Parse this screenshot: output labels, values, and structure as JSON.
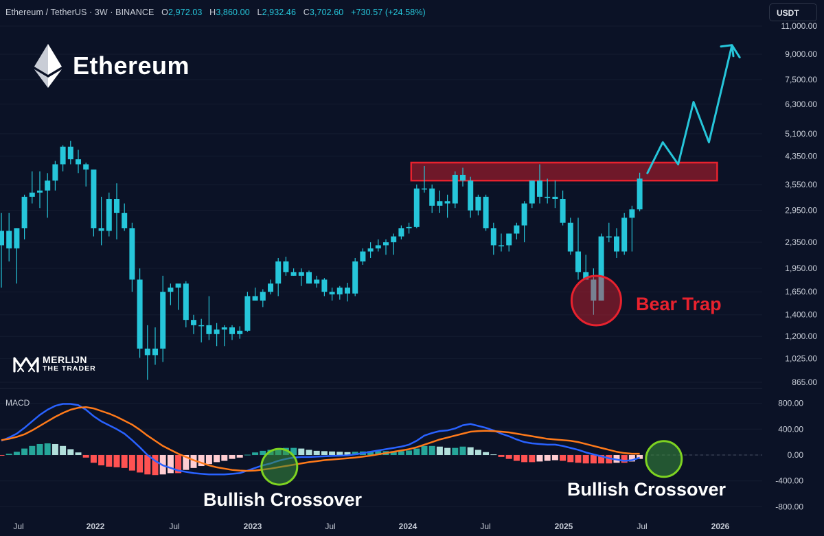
{
  "header": {
    "symbol": "Ethereum / TetherUS · 3W · BINANCE",
    "open_label": "O",
    "open": "2,972.03",
    "high_label": "H",
    "high": "3,860.00",
    "low_label": "L",
    "low": "2,932.46",
    "close_label": "C",
    "close": "3,702.60",
    "change": "+730.57 (+24.58%)"
  },
  "currency_button": "USDT",
  "brand": {
    "title": "Ethereum",
    "icon": "ethereum-logo-icon"
  },
  "watermark": {
    "line1": "MERLIJN",
    "line2": "THE TRADER",
    "icon": "merlijn-logo-icon"
  },
  "annotations": {
    "bear_trap": "Bear Trap",
    "bullish_crossover_1": "Bullish Crossover",
    "bullish_crossover_2": "Bullish Crossover"
  },
  "colors": {
    "background": "#0b1226",
    "candle": "#26c6da",
    "resistance_zone": "#e8222e",
    "bear_trap": "#e8222e",
    "projection": "#26c6da",
    "macd_line": "#2962ff",
    "signal_line": "#ff7a1a",
    "hist_pos_strong": "#26a69a",
    "hist_pos_weak": "#b2dfdb",
    "hist_neg_strong": "#ff5252",
    "hist_neg_weak": "#ffcdd2",
    "crossover_circle": "#7ed321",
    "axis_text": "#c9ced8"
  },
  "chart_data": [
    {
      "type": "candlestick",
      "title": "Ethereum / TetherUS · 3W · BINANCE",
      "y_scale": "log",
      "y_ticks": [
        "11,000.00",
        "9,000.00",
        "7,500.00",
        "6,300.00",
        "5,100.00",
        "4,350.00",
        "3,550.00",
        "2,950.00",
        "2,350.00",
        "1,950.00",
        "1,650.00",
        "1,400.00",
        "1,200.00",
        "1,025.00",
        "865.00"
      ],
      "x_ticks": [
        "Jul",
        "2022",
        "Jul",
        "2023",
        "Jul",
        "2024",
        "Jul",
        "2025",
        "Jul",
        "2026"
      ],
      "candles": [
        {
          "o": 2300,
          "h": 2900,
          "l": 1700,
          "c": 2550
        },
        {
          "o": 2550,
          "h": 2900,
          "l": 2050,
          "c": 2250
        },
        {
          "o": 2250,
          "h": 2600,
          "l": 1750,
          "c": 2600
        },
        {
          "o": 2600,
          "h": 3300,
          "l": 2400,
          "c": 3250
        },
        {
          "o": 3250,
          "h": 3900,
          "l": 3100,
          "c": 3350
        },
        {
          "o": 3350,
          "h": 3900,
          "l": 3000,
          "c": 3400
        },
        {
          "o": 3400,
          "h": 3850,
          "l": 2800,
          "c": 3650
        },
        {
          "o": 3650,
          "h": 4200,
          "l": 3400,
          "c": 4100
        },
        {
          "o": 4100,
          "h": 4700,
          "l": 3900,
          "c": 4650
        },
        {
          "o": 4650,
          "h": 4850,
          "l": 4100,
          "c": 4250
        },
        {
          "o": 4250,
          "h": 4550,
          "l": 3850,
          "c": 4100
        },
        {
          "o": 4100,
          "h": 4150,
          "l": 3500,
          "c": 3950
        },
        {
          "o": 3950,
          "h": 3950,
          "l": 2450,
          "c": 2600
        },
        {
          "o": 2600,
          "h": 3250,
          "l": 2300,
          "c": 2550
        },
        {
          "o": 2550,
          "h": 3350,
          "l": 2450,
          "c": 3200
        },
        {
          "o": 3200,
          "h": 3580,
          "l": 2400,
          "c": 2900
        },
        {
          "o": 2900,
          "h": 3100,
          "l": 2550,
          "c": 2600
        },
        {
          "o": 2600,
          "h": 2700,
          "l": 1650,
          "c": 1800
        },
        {
          "o": 1800,
          "h": 1950,
          "l": 1030,
          "c": 1100
        },
        {
          "o": 1100,
          "h": 1300,
          "l": 880,
          "c": 1050
        },
        {
          "o": 1050,
          "h": 1280,
          "l": 980,
          "c": 1100
        },
        {
          "o": 1100,
          "h": 1850,
          "l": 1000,
          "c": 1650
        },
        {
          "o": 1650,
          "h": 1750,
          "l": 1500,
          "c": 1700
        },
        {
          "o": 1700,
          "h": 1720,
          "l": 1450,
          "c": 1750
        },
        {
          "o": 1750,
          "h": 1780,
          "l": 1280,
          "c": 1350
        },
        {
          "o": 1350,
          "h": 1400,
          "l": 1220,
          "c": 1300
        },
        {
          "o": 1300,
          "h": 1360,
          "l": 1150,
          "c": 1300
        },
        {
          "o": 1300,
          "h": 1600,
          "l": 1170,
          "c": 1220
        },
        {
          "o": 1220,
          "h": 1320,
          "l": 1120,
          "c": 1260
        },
        {
          "o": 1260,
          "h": 1300,
          "l": 1120,
          "c": 1280
        },
        {
          "o": 1280,
          "h": 1300,
          "l": 1170,
          "c": 1220
        },
        {
          "o": 1220,
          "h": 1290,
          "l": 1180,
          "c": 1250
        },
        {
          "o": 1250,
          "h": 1650,
          "l": 1240,
          "c": 1600
        },
        {
          "o": 1600,
          "h": 1700,
          "l": 1550,
          "c": 1550
        },
        {
          "o": 1550,
          "h": 1680,
          "l": 1480,
          "c": 1650
        },
        {
          "o": 1650,
          "h": 1800,
          "l": 1620,
          "c": 1750
        },
        {
          "o": 1750,
          "h": 2100,
          "l": 1600,
          "c": 2050
        },
        {
          "o": 2050,
          "h": 2120,
          "l": 1850,
          "c": 1900
        },
        {
          "o": 1900,
          "h": 1950,
          "l": 1850,
          "c": 1850
        },
        {
          "o": 1850,
          "h": 1950,
          "l": 1720,
          "c": 1900
        },
        {
          "o": 1900,
          "h": 1920,
          "l": 1750,
          "c": 1750
        },
        {
          "o": 1750,
          "h": 1850,
          "l": 1700,
          "c": 1800
        },
        {
          "o": 1800,
          "h": 1820,
          "l": 1600,
          "c": 1650
        },
        {
          "o": 1650,
          "h": 1700,
          "l": 1550,
          "c": 1620
        },
        {
          "o": 1620,
          "h": 1720,
          "l": 1560,
          "c": 1700
        },
        {
          "o": 1700,
          "h": 1760,
          "l": 1540,
          "c": 1630
        },
        {
          "o": 1630,
          "h": 2100,
          "l": 1600,
          "c": 2050
        },
        {
          "o": 2050,
          "h": 2250,
          "l": 2000,
          "c": 2200
        },
        {
          "o": 2200,
          "h": 2350,
          "l": 2100,
          "c": 2250
        },
        {
          "o": 2250,
          "h": 2400,
          "l": 2200,
          "c": 2300
        },
        {
          "o": 2300,
          "h": 2400,
          "l": 2150,
          "c": 2350
        },
        {
          "o": 2350,
          "h": 2500,
          "l": 2150,
          "c": 2450
        },
        {
          "o": 2450,
          "h": 2650,
          "l": 2400,
          "c": 2600
        },
        {
          "o": 2600,
          "h": 2700,
          "l": 2500,
          "c": 2620
        },
        {
          "o": 2620,
          "h": 3550,
          "l": 2600,
          "c": 3450
        },
        {
          "o": 3450,
          "h": 4050,
          "l": 3350,
          "c": 3450
        },
        {
          "o": 3450,
          "h": 3550,
          "l": 2900,
          "c": 3050
        },
        {
          "o": 3050,
          "h": 3400,
          "l": 2900,
          "c": 3150
        },
        {
          "o": 3150,
          "h": 3300,
          "l": 2800,
          "c": 3100
        },
        {
          "o": 3100,
          "h": 3900,
          "l": 3000,
          "c": 3800
        },
        {
          "o": 3800,
          "h": 4000,
          "l": 3500,
          "c": 3650
        },
        {
          "o": 3650,
          "h": 3750,
          "l": 2800,
          "c": 2950
        },
        {
          "o": 2950,
          "h": 3300,
          "l": 2850,
          "c": 3250
        },
        {
          "o": 3250,
          "h": 3300,
          "l": 2550,
          "c": 2600
        },
        {
          "o": 2600,
          "h": 2700,
          "l": 2150,
          "c": 2300
        },
        {
          "o": 2300,
          "h": 2500,
          "l": 2200,
          "c": 2300
        },
        {
          "o": 2300,
          "h": 2500,
          "l": 2200,
          "c": 2500
        },
        {
          "o": 2500,
          "h": 2700,
          "l": 2400,
          "c": 2650
        },
        {
          "o": 2650,
          "h": 3150,
          "l": 2350,
          "c": 3100
        },
        {
          "o": 3100,
          "h": 3650,
          "l": 3000,
          "c": 3650
        },
        {
          "o": 3650,
          "h": 4100,
          "l": 3100,
          "c": 3250
        },
        {
          "o": 3250,
          "h": 3700,
          "l": 3100,
          "c": 3250
        },
        {
          "o": 3250,
          "h": 3650,
          "l": 3000,
          "c": 3200
        },
        {
          "o": 3200,
          "h": 3400,
          "l": 2650,
          "c": 2700
        },
        {
          "o": 2700,
          "h": 2800,
          "l": 2150,
          "c": 2200
        },
        {
          "o": 2200,
          "h": 2800,
          "l": 1800,
          "c": 1900
        },
        {
          "o": 1900,
          "h": 2150,
          "l": 1800,
          "c": 1800
        },
        {
          "o": 1800,
          "h": 1950,
          "l": 1400,
          "c": 1550
        },
        {
          "o": 1550,
          "h": 2500,
          "l": 1550,
          "c": 2450
        },
        {
          "o": 2450,
          "h": 2700,
          "l": 2350,
          "c": 2450
        },
        {
          "o": 2450,
          "h": 2600,
          "l": 2100,
          "c": 2200
        },
        {
          "o": 2200,
          "h": 2900,
          "l": 2150,
          "c": 2800
        },
        {
          "o": 2800,
          "h": 3050,
          "l": 2200,
          "c": 2972.03
        },
        {
          "o": 2972.03,
          "h": 3860,
          "l": 2932.46,
          "c": 3702.6
        }
      ],
      "resistance_zone": {
        "low": 3650,
        "high": 4150,
        "start_candle": 54,
        "end_candle": 92
      },
      "bear_trap_level": 1550,
      "projection": [
        {
          "candle": 84,
          "price": 3850
        },
        {
          "candle": 86,
          "price": 4800
        },
        {
          "candle": 88,
          "price": 4100
        },
        {
          "candle": 90,
          "price": 6400
        },
        {
          "candle": 92,
          "price": 4800
        },
        {
          "candle": 95,
          "price": 9600
        },
        {
          "candle": 96,
          "price": 8800
        }
      ]
    },
    {
      "type": "line",
      "title": "MACD",
      "y_ticks": [
        "800.00",
        "400.00",
        "0.00",
        "-400.00",
        "-800.00"
      ],
      "ylim": [
        -880,
        880
      ],
      "series": [
        {
          "name": "",
          "values": [
            220,
            270,
            330,
            420,
            520,
            620,
            700,
            760,
            790,
            790,
            770,
            700,
            600,
            520,
            460,
            400,
            330,
            230,
            120,
            0,
            -90,
            -160,
            -200,
            -240,
            -260,
            -280,
            -290,
            -300,
            -300,
            -300,
            -290,
            -280,
            -240,
            -200,
            -160,
            -130,
            -90,
            -60,
            -40,
            -30,
            -30,
            -25,
            -20,
            -15,
            -10,
            -5,
            10,
            30,
            50,
            70,
            90,
            110,
            130,
            160,
            220,
            300,
            340,
            370,
            380,
            410,
            460,
            480,
            450,
            420,
            380,
            330,
            290,
            240,
            200,
            180,
            170,
            160,
            160,
            140,
            110,
            80,
            40,
            10,
            -20,
            -50,
            -70,
            -90,
            -80,
            -40
          ]
        },
        {
          "name": "",
          "values": [
            230,
            250,
            280,
            320,
            380,
            450,
            520,
            590,
            650,
            700,
            730,
            740,
            720,
            680,
            640,
            590,
            530,
            470,
            390,
            300,
            220,
            140,
            80,
            20,
            -30,
            -80,
            -120,
            -160,
            -190,
            -210,
            -230,
            -240,
            -245,
            -240,
            -225,
            -210,
            -190,
            -170,
            -150,
            -130,
            -110,
            -95,
            -80,
            -70,
            -60,
            -50,
            -40,
            -25,
            -10,
            10,
            30,
            50,
            70,
            90,
            120,
            160,
            200,
            240,
            270,
            300,
            330,
            360,
            370,
            375,
            370,
            360,
            350,
            330,
            310,
            290,
            270,
            250,
            240,
            230,
            220,
            200,
            170,
            140,
            110,
            80,
            50,
            30,
            20,
            20
          ]
        }
      ],
      "histogram": [
        -10,
        20,
        50,
        100,
        140,
        170,
        180,
        170,
        140,
        90,
        40,
        -40,
        -120,
        -160,
        -180,
        -190,
        -200,
        -240,
        -270,
        -300,
        -310,
        -300,
        -280,
        -280,
        -230,
        -200,
        -170,
        -140,
        -110,
        -90,
        -60,
        -40,
        5,
        40,
        65,
        80,
        100,
        110,
        110,
        100,
        80,
        65,
        60,
        55,
        50,
        45,
        50,
        55,
        60,
        60,
        60,
        60,
        60,
        70,
        100,
        140,
        140,
        130,
        110,
        110,
        130,
        120,
        80,
        45,
        10,
        -30,
        -60,
        -90,
        -110,
        -110,
        -100,
        -90,
        -80,
        -90,
        -110,
        -120,
        -130,
        -130,
        -130,
        -130,
        -120,
        -120,
        -100,
        -60
      ],
      "crossovers": [
        {
          "candle": 34
        },
        {
          "candle": 84
        }
      ]
    }
  ]
}
